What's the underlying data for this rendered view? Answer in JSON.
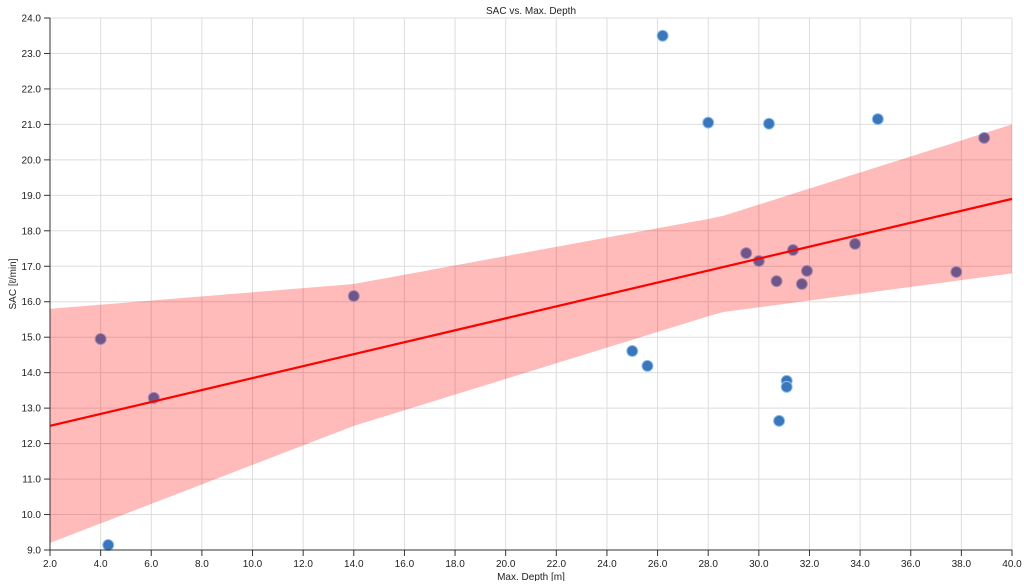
{
  "chart_data": {
    "type": "scatter",
    "title": "SAC vs. Max. Depth",
    "xlabel": "Max. Depth [m]",
    "ylabel": "SAC [ℓ/min]",
    "xlim": [
      2.0,
      40.0
    ],
    "ylim": [
      9.0,
      24.0
    ],
    "x_ticks": [
      "2.0",
      "4.0",
      "6.0",
      "8.0",
      "10.0",
      "12.0",
      "14.0",
      "16.0",
      "18.0",
      "20.0",
      "22.0",
      "24.0",
      "26.0",
      "28.0",
      "30.0",
      "32.0",
      "34.0",
      "36.0",
      "38.0",
      "40.0"
    ],
    "y_ticks": [
      "9.0",
      "10.0",
      "11.0",
      "12.0",
      "13.0",
      "14.0",
      "15.0",
      "16.0",
      "17.0",
      "18.0",
      "19.0",
      "20.0",
      "21.0",
      "22.0",
      "23.0",
      "24.0"
    ],
    "grid": true,
    "points": [
      {
        "x": 4.0,
        "y": 14.95
      },
      {
        "x": 4.3,
        "y": 9.14
      },
      {
        "x": 6.1,
        "y": 13.29
      },
      {
        "x": 14.0,
        "y": 16.16
      },
      {
        "x": 25.0,
        "y": 14.61
      },
      {
        "x": 25.6,
        "y": 14.19
      },
      {
        "x": 26.2,
        "y": 23.5
      },
      {
        "x": 28.0,
        "y": 21.05
      },
      {
        "x": 29.5,
        "y": 17.37
      },
      {
        "x": 30.0,
        "y": 17.15
      },
      {
        "x": 30.4,
        "y": 21.02
      },
      {
        "x": 30.7,
        "y": 16.58
      },
      {
        "x": 30.8,
        "y": 12.64
      },
      {
        "x": 31.1,
        "y": 13.77
      },
      {
        "x": 31.1,
        "y": 13.6
      },
      {
        "x": 31.35,
        "y": 17.46
      },
      {
        "x": 31.7,
        "y": 16.5
      },
      {
        "x": 31.9,
        "y": 16.87
      },
      {
        "x": 33.8,
        "y": 17.63
      },
      {
        "x": 34.7,
        "y": 21.15
      },
      {
        "x": 37.8,
        "y": 16.84
      },
      {
        "x": 38.9,
        "y": 20.62
      }
    ],
    "regression": {
      "x": [
        2.0,
        40.0
      ],
      "y": [
        12.5,
        18.9
      ]
    },
    "confidence_band": {
      "x": [
        2.0,
        14.0,
        28.5,
        40.0
      ],
      "upper": [
        15.8,
        16.5,
        18.4,
        21.0
      ],
      "lower": [
        9.2,
        12.5,
        15.7,
        16.8
      ]
    },
    "colors": {
      "points": "#3b76bb",
      "regression": "#ff0000",
      "band": "#ff0000",
      "grid": "#dddddd"
    }
  }
}
